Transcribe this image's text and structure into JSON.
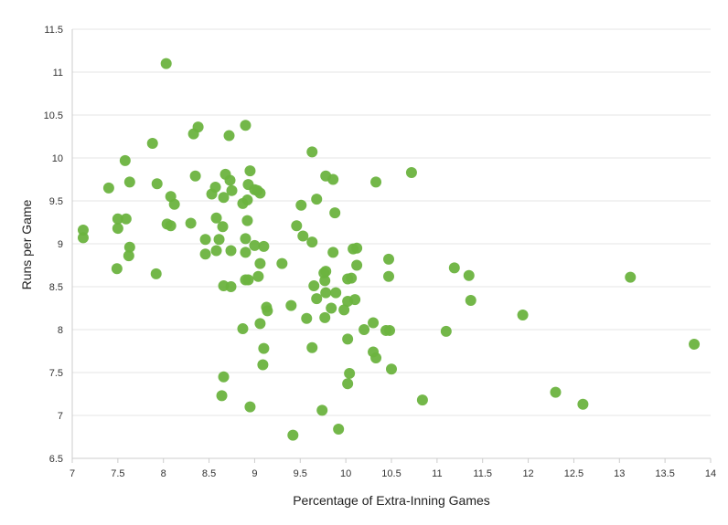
{
  "chart_data": {
    "type": "scatter",
    "title": "",
    "xlabel": "Percentage of Extra-Inning Games",
    "ylabel": "Runs per Game",
    "xlim": [
      7,
      14
    ],
    "ylim": [
      6.5,
      11.5
    ],
    "x_ticks": [
      "7",
      "7.5",
      "8",
      "8.5",
      "9",
      "9.5",
      "10",
      "10.5",
      "11",
      "11.5",
      "12",
      "12.5",
      "13",
      "13.5",
      "14"
    ],
    "y_ticks": [
      "6.5",
      "7",
      "7.5",
      "8",
      "8.5",
      "9",
      "9.5",
      "10",
      "10.5",
      "11",
      "11.5"
    ],
    "grid": "horizontal",
    "legend": "none",
    "colors": {
      "point": "#6bb33f",
      "grid": "#e6e6e6",
      "axis": "#cccccc"
    },
    "series": [
      {
        "points": [
          [
            8.03,
            11.1
          ],
          [
            8.38,
            10.36
          ],
          [
            8.33,
            10.28
          ],
          [
            8.9,
            10.38
          ],
          [
            8.72,
            10.26
          ],
          [
            7.88,
            10.17
          ],
          [
            9.63,
            10.07
          ],
          [
            7.58,
            9.97
          ],
          [
            10.72,
            9.83
          ],
          [
            8.35,
            9.79
          ],
          [
            8.68,
            9.81
          ],
          [
            8.95,
            9.85
          ],
          [
            9.78,
            9.79
          ],
          [
            9.86,
            9.75
          ],
          [
            7.63,
            9.72
          ],
          [
            7.93,
            9.7
          ],
          [
            10.33,
            9.72
          ],
          [
            8.73,
            9.74
          ],
          [
            7.4,
            9.65
          ],
          [
            8.57,
            9.66
          ],
          [
            8.93,
            9.69
          ],
          [
            9.0,
            9.63
          ],
          [
            9.03,
            9.62
          ],
          [
            9.06,
            9.59
          ],
          [
            8.53,
            9.58
          ],
          [
            8.75,
            9.62
          ],
          [
            8.08,
            9.55
          ],
          [
            8.66,
            9.54
          ],
          [
            8.92,
            9.51
          ],
          [
            9.68,
            9.52
          ],
          [
            8.12,
            9.46
          ],
          [
            8.87,
            9.47
          ],
          [
            9.51,
            9.45
          ],
          [
            9.88,
            9.36
          ],
          [
            8.58,
            9.3
          ],
          [
            7.5,
            9.29
          ],
          [
            7.59,
            9.29
          ],
          [
            8.92,
            9.27
          ],
          [
            8.04,
            9.23
          ],
          [
            8.08,
            9.21
          ],
          [
            8.3,
            9.24
          ],
          [
            9.46,
            9.21
          ],
          [
            8.65,
            9.2
          ],
          [
            7.5,
            9.18
          ],
          [
            7.12,
            9.16
          ],
          [
            7.12,
            9.07
          ],
          [
            9.53,
            9.09
          ],
          [
            8.46,
            9.05
          ],
          [
            8.61,
            9.05
          ],
          [
            8.9,
            9.06
          ],
          [
            9.63,
            9.02
          ],
          [
            9.0,
            8.98
          ],
          [
            9.1,
            8.97
          ],
          [
            10.08,
            8.94
          ],
          [
            10.12,
            8.95
          ],
          [
            7.63,
            8.96
          ],
          [
            8.58,
            8.92
          ],
          [
            8.74,
            8.92
          ],
          [
            8.9,
            8.9
          ],
          [
            9.86,
            8.9
          ],
          [
            7.62,
            8.86
          ],
          [
            8.46,
            8.88
          ],
          [
            10.47,
            8.82
          ],
          [
            9.3,
            8.77
          ],
          [
            9.06,
            8.77
          ],
          [
            10.12,
            8.75
          ],
          [
            11.19,
            8.72
          ],
          [
            7.49,
            8.71
          ],
          [
            9.78,
            8.68
          ],
          [
            9.76,
            8.66
          ],
          [
            7.92,
            8.65
          ],
          [
            9.04,
            8.62
          ],
          [
            10.47,
            8.62
          ],
          [
            11.35,
            8.63
          ],
          [
            13.12,
            8.61
          ],
          [
            10.06,
            8.6
          ],
          [
            10.02,
            8.59
          ],
          [
            8.9,
            8.58
          ],
          [
            8.93,
            8.58
          ],
          [
            9.77,
            8.57
          ],
          [
            8.66,
            8.51
          ],
          [
            8.74,
            8.5
          ],
          [
            9.65,
            8.51
          ],
          [
            9.78,
            8.43
          ],
          [
            9.89,
            8.43
          ],
          [
            9.68,
            8.36
          ],
          [
            10.1,
            8.35
          ],
          [
            11.37,
            8.34
          ],
          [
            10.02,
            8.33
          ],
          [
            9.4,
            8.28
          ],
          [
            9.13,
            8.26
          ],
          [
            9.14,
            8.22
          ],
          [
            9.84,
            8.25
          ],
          [
            9.98,
            8.23
          ],
          [
            11.94,
            8.17
          ],
          [
            9.57,
            8.13
          ],
          [
            9.77,
            8.14
          ],
          [
            10.3,
            8.08
          ],
          [
            9.06,
            8.07
          ],
          [
            8.87,
            8.01
          ],
          [
            10.2,
            8.0
          ],
          [
            10.44,
            7.99
          ],
          [
            10.48,
            7.99
          ],
          [
            11.1,
            7.98
          ],
          [
            10.02,
            7.89
          ],
          [
            13.82,
            7.83
          ],
          [
            9.63,
            7.79
          ],
          [
            9.1,
            7.78
          ],
          [
            10.3,
            7.74
          ],
          [
            10.33,
            7.67
          ],
          [
            9.09,
            7.59
          ],
          [
            10.5,
            7.54
          ],
          [
            10.04,
            7.49
          ],
          [
            8.66,
            7.45
          ],
          [
            10.02,
            7.37
          ],
          [
            12.3,
            7.27
          ],
          [
            8.64,
            7.23
          ],
          [
            10.84,
            7.18
          ],
          [
            12.6,
            7.13
          ],
          [
            8.95,
            7.1
          ],
          [
            9.74,
            7.06
          ],
          [
            9.92,
            6.84
          ],
          [
            9.42,
            6.77
          ]
        ]
      }
    ]
  }
}
